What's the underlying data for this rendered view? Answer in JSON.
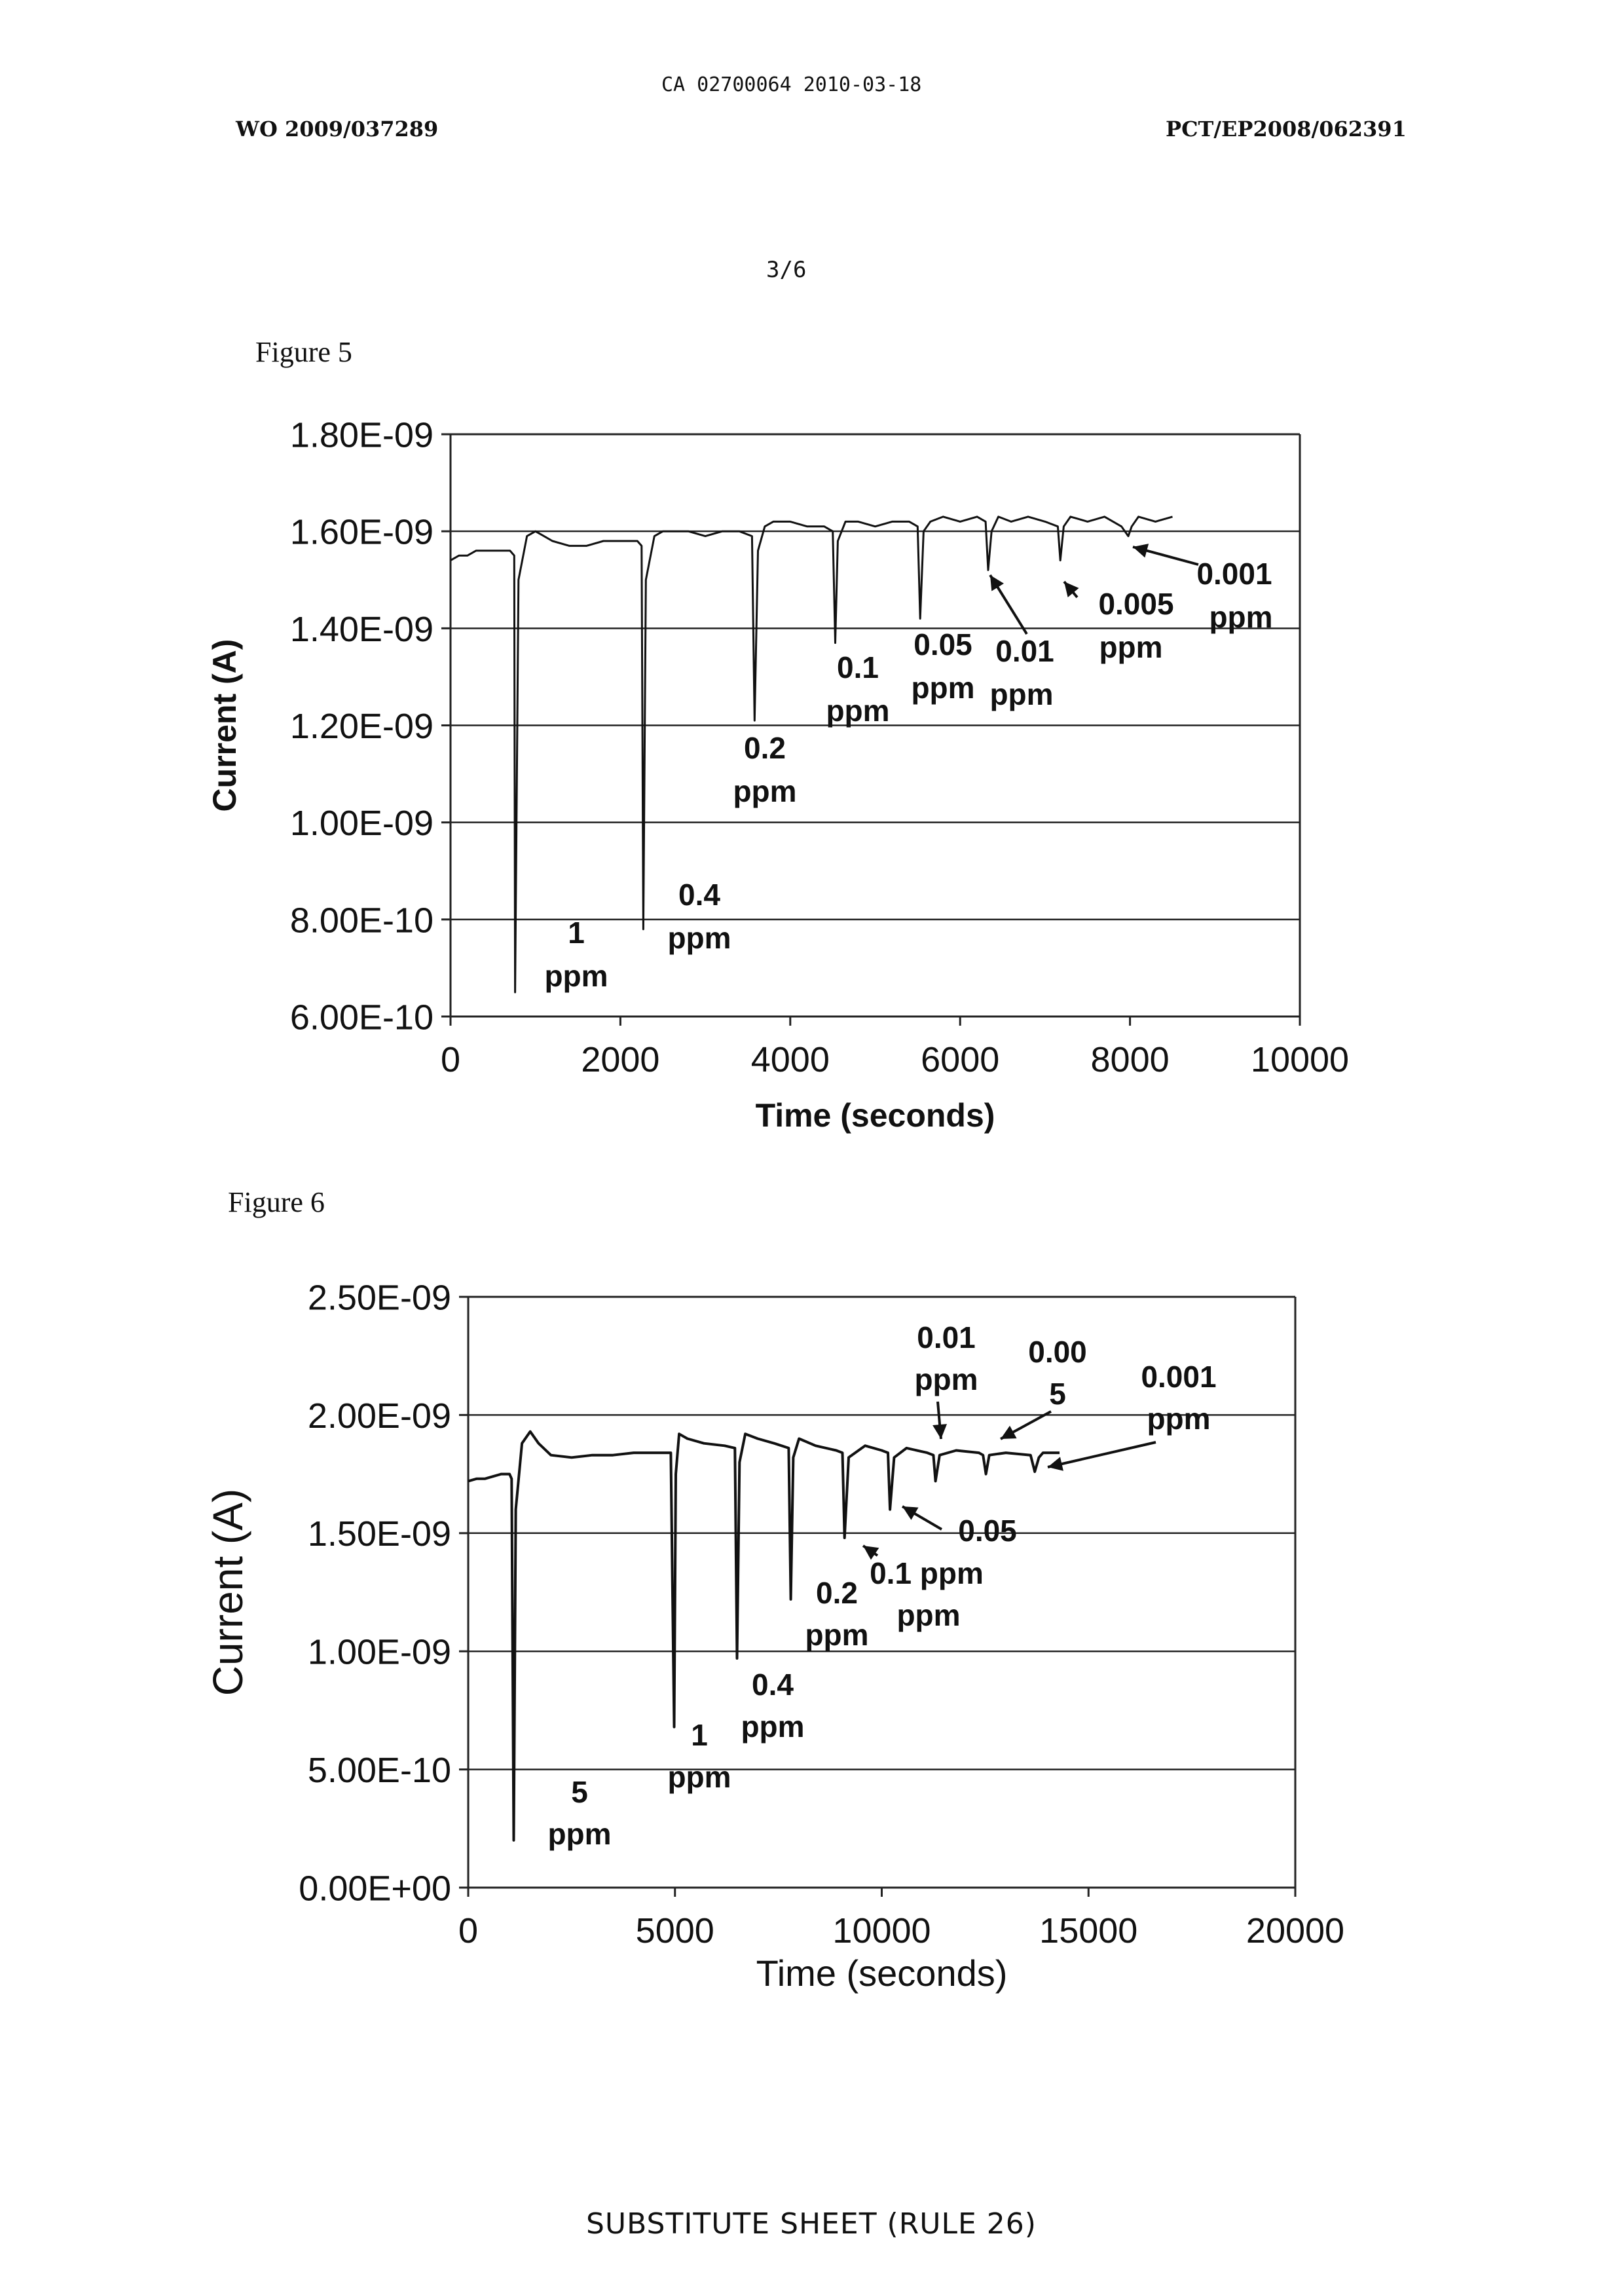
{
  "header": {
    "filing_id": "CA 02700064 2010-03-18",
    "wo_number": "WO 2009/037289",
    "pct_number": "PCT/EP2008/062391",
    "page_number": "3/6"
  },
  "footer": {
    "text": "SUBSTITUTE SHEET (RULE 26)"
  },
  "chart_data": [
    {
      "figure_label": "Figure 5",
      "type": "line",
      "xlabel": "Time (seconds)",
      "ylabel": "Current (A)",
      "xlim": [
        0,
        10000
      ],
      "ylim": [
        6e-10,
        1.8e-09
      ],
      "xticks": [
        0,
        2000,
        4000,
        6000,
        8000,
        10000
      ],
      "xtick_labels": [
        "0",
        "2000",
        "4000",
        "6000",
        "8000",
        "10000"
      ],
      "yticks": [
        6e-10,
        8e-10,
        1e-09,
        1.2e-09,
        1.4e-09,
        1.6e-09,
        1.8e-09
      ],
      "ytick_labels": [
        "6.00E-10",
        "8.00E-10",
        "1.00E-09",
        "1.20E-09",
        "1.40E-09",
        "1.60E-09",
        "1.80E-09"
      ],
      "grid": "horizontal",
      "series": [
        {
          "x": [
            0,
            100,
            200,
            300,
            400,
            500,
            600,
            700,
            750,
            760,
            800,
            900,
            1000,
            1100,
            1200,
            1400,
            1600,
            1800,
            2000,
            2200,
            2250,
            2270,
            2300,
            2400,
            2500,
            2600,
            2800,
            3000,
            3200,
            3400,
            3550,
            3580,
            3620,
            3700,
            3800,
            4000,
            4200,
            4400,
            4500,
            4530,
            4560,
            4650,
            4800,
            5000,
            5200,
            5400,
            5500,
            5530,
            5570,
            5650,
            5800,
            6000,
            6200,
            6300,
            6330,
            6370,
            6450,
            6600,
            6800,
            7000,
            7150,
            7180,
            7220,
            7300,
            7500,
            7700,
            7900,
            7980,
            8020,
            8100,
            8300,
            8500
          ],
          "y": [
            1.54e-09,
            1.55e-09,
            1.55e-09,
            1.56e-09,
            1.56e-09,
            1.56e-09,
            1.56e-09,
            1.56e-09,
            1.55e-09,
            6.5e-10,
            1.5e-09,
            1.59e-09,
            1.6e-09,
            1.59e-09,
            1.58e-09,
            1.57e-09,
            1.57e-09,
            1.58e-09,
            1.58e-09,
            1.58e-09,
            1.57e-09,
            7.8e-10,
            1.5e-09,
            1.59e-09,
            1.6e-09,
            1.6e-09,
            1.6e-09,
            1.59e-09,
            1.6e-09,
            1.6e-09,
            1.59e-09,
            1.21e-09,
            1.56e-09,
            1.61e-09,
            1.62e-09,
            1.62e-09,
            1.61e-09,
            1.61e-09,
            1.6e-09,
            1.37e-09,
            1.58e-09,
            1.62e-09,
            1.62e-09,
            1.61e-09,
            1.62e-09,
            1.62e-09,
            1.61e-09,
            1.42e-09,
            1.6e-09,
            1.62e-09,
            1.63e-09,
            1.62e-09,
            1.63e-09,
            1.62e-09,
            1.52e-09,
            1.6e-09,
            1.63e-09,
            1.62e-09,
            1.63e-09,
            1.62e-09,
            1.61e-09,
            1.54e-09,
            1.61e-09,
            1.63e-09,
            1.62e-09,
            1.63e-09,
            1.61e-09,
            1.59e-09,
            1.61e-09,
            1.63e-09,
            1.62e-09,
            1.63e-09
          ]
        }
      ],
      "annotations": [
        {
          "lines": [
            "1",
            "ppm"
          ]
        },
        {
          "lines": [
            "0.4",
            "ppm"
          ]
        },
        {
          "lines": [
            "0.2",
            "ppm"
          ]
        },
        {
          "lines": [
            "0.1",
            "ppm"
          ]
        },
        {
          "lines": [
            "0.05",
            "ppm"
          ]
        },
        {
          "lines": [
            "0.01",
            "ppm"
          ]
        },
        {
          "lines": [
            "0.005",
            "ppm"
          ]
        },
        {
          "lines": [
            "0.001",
            "ppm"
          ]
        }
      ]
    },
    {
      "figure_label": "Figure 6",
      "type": "line",
      "xlabel": "Time (seconds)",
      "ylabel": "Current (A)",
      "xlim": [
        0,
        20000
      ],
      "ylim": [
        0,
        2.5e-09
      ],
      "xticks": [
        0,
        5000,
        10000,
        15000,
        20000
      ],
      "xtick_labels": [
        "0",
        "5000",
        "10000",
        "15000",
        "20000"
      ],
      "yticks": [
        0,
        5e-10,
        1e-09,
        1.5e-09,
        2e-09,
        2.5e-09
      ],
      "ytick_labels": [
        "0.00E+00",
        "5.00E-10",
        "1.00E-09",
        "1.50E-09",
        "2.00E-09",
        "2.50E-09"
      ],
      "grid": "horizontal",
      "series": [
        {
          "x": [
            0,
            200,
            400,
            600,
            800,
            1000,
            1050,
            1100,
            1150,
            1300,
            1500,
            1700,
            2000,
            2500,
            3000,
            3500,
            4000,
            4500,
            4900,
            4980,
            5020,
            5100,
            5300,
            5700,
            6200,
            6450,
            6500,
            6560,
            6700,
            7000,
            7400,
            7750,
            7800,
            7860,
            8000,
            8400,
            8900,
            9050,
            9100,
            9200,
            9600,
            10000,
            10150,
            10200,
            10300,
            10600,
            11100,
            11250,
            11300,
            11400,
            11800,
            12350,
            12450,
            12520,
            12600,
            13000,
            13600,
            13700,
            13800,
            13900,
            14100,
            14300
          ],
          "y": [
            1.72e-09,
            1.73e-09,
            1.73e-09,
            1.74e-09,
            1.75e-09,
            1.75e-09,
            1.73e-09,
            2e-10,
            1.6e-09,
            1.88e-09,
            1.93e-09,
            1.88e-09,
            1.83e-09,
            1.82e-09,
            1.83e-09,
            1.83e-09,
            1.84e-09,
            1.84e-09,
            1.84e-09,
            6.8e-10,
            1.75e-09,
            1.92e-09,
            1.9e-09,
            1.88e-09,
            1.87e-09,
            1.86e-09,
            9.7e-10,
            1.8e-09,
            1.92e-09,
            1.9e-09,
            1.88e-09,
            1.86e-09,
            1.22e-09,
            1.82e-09,
            1.9e-09,
            1.87e-09,
            1.85e-09,
            1.84e-09,
            1.48e-09,
            1.82e-09,
            1.87e-09,
            1.85e-09,
            1.84e-09,
            1.6e-09,
            1.82e-09,
            1.86e-09,
            1.84e-09,
            1.83e-09,
            1.72e-09,
            1.83e-09,
            1.85e-09,
            1.84e-09,
            1.83e-09,
            1.75e-09,
            1.83e-09,
            1.84e-09,
            1.83e-09,
            1.76e-09,
            1.82e-09,
            1.84e-09,
            1.84e-09,
            1.84e-09
          ]
        }
      ],
      "annotations": [
        {
          "lines": [
            "5",
            "ppm"
          ]
        },
        {
          "lines": [
            "1",
            "ppm"
          ]
        },
        {
          "lines": [
            "0.4",
            "ppm"
          ]
        },
        {
          "lines": [
            "0.2",
            "ppm"
          ]
        },
        {
          "lines": [
            "0.1 ppm",
            "ppm"
          ]
        },
        {
          "lines": [
            "0.05"
          ]
        },
        {
          "lines": [
            "0.01",
            "ppm"
          ]
        },
        {
          "lines": [
            "0.00",
            "5"
          ]
        },
        {
          "lines": [
            "0.001",
            "ppm"
          ]
        }
      ]
    }
  ]
}
